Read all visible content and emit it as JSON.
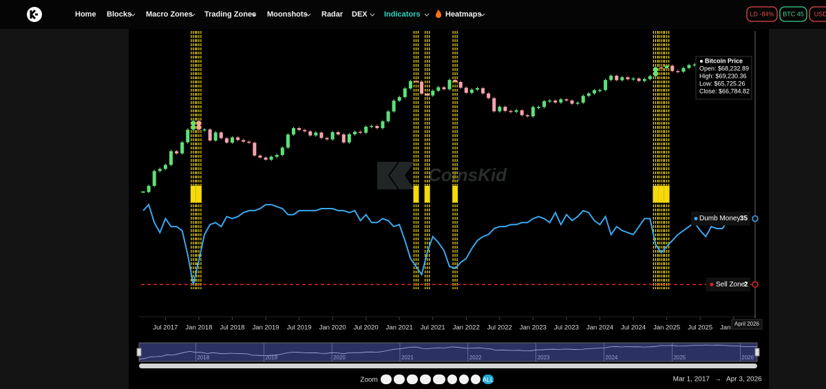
{
  "nav": {
    "items": [
      {
        "label": "Home"
      },
      {
        "label": "Blocks"
      },
      {
        "label": "Macro Zones"
      },
      {
        "label": "Trading Zones"
      },
      {
        "label": "Moonshots"
      },
      {
        "label": "Radar"
      },
      {
        "label": "DEX"
      },
      {
        "label": "Indicators",
        "active": true
      },
      {
        "label": "Heatmaps"
      }
    ],
    "badges": [
      {
        "label": "LD -84%",
        "color": "#e5484d"
      },
      {
        "label": "BTC 45",
        "color": "#3fcf8e"
      },
      {
        "label": "USDT",
        "color": "#e5484d"
      }
    ]
  },
  "watermark": "CoinsKid",
  "chart_data": {
    "type": "candlestick-line",
    "x": [
      "Mar 2017",
      "Apr 2017",
      "May 2017",
      "Jun 2017",
      "Jul 2017",
      "Aug 2017",
      "Sep 2017",
      "Oct 2017",
      "Nov 2017",
      "Dec 2017",
      "Jan 2018",
      "Feb 2018",
      "Mar 2018",
      "Apr 2018",
      "May 2018",
      "Jun 2018",
      "Jul 2018",
      "Aug 2018",
      "Sep 2018",
      "Oct 2018",
      "Nov 2018",
      "Dec 2018",
      "Jan 2019",
      "Feb 2019",
      "Mar 2019",
      "Apr 2019",
      "May 2019",
      "Jun 2019",
      "Jul 2019",
      "Aug 2019",
      "Sep 2019",
      "Oct 2019",
      "Nov 2019",
      "Dec 2019",
      "Jan 2020",
      "Feb 2020",
      "Mar 2020",
      "Apr 2020",
      "May 2020",
      "Jun 2020",
      "Jul 2020",
      "Aug 2020",
      "Sep 2020",
      "Oct 2020",
      "Nov 2020",
      "Dec 2020",
      "Jan 2021",
      "Feb 2021",
      "Mar 2021",
      "Apr 2021",
      "May 2021",
      "Jun 2021",
      "Jul 2021",
      "Aug 2021",
      "Sep 2021",
      "Oct 2021",
      "Nov 2021",
      "Dec 2021",
      "Jan 2022",
      "Feb 2022",
      "Mar 2022",
      "Apr 2022",
      "May 2022",
      "Jun 2022",
      "Jul 2022",
      "Aug 2022",
      "Sep 2022",
      "Oct 2022",
      "Nov 2022",
      "Dec 2022",
      "Jan 2023",
      "Feb 2023",
      "Mar 2023",
      "Apr 2023",
      "May 2023",
      "Jun 2023",
      "Jul 2023",
      "Aug 2023",
      "Sep 2023",
      "Oct 2023",
      "Nov 2023",
      "Dec 2023",
      "Jan 2024",
      "Feb 2024",
      "Mar 2024",
      "Apr 2024",
      "May 2024",
      "Jun 2024",
      "Jul 2024",
      "Aug 2024",
      "Sep 2024",
      "Oct 2024",
      "Nov 2024",
      "Dec 2024",
      "Jan 2025",
      "Feb 2025",
      "Mar 2025",
      "Apr 2025",
      "May 2025",
      "Jun 2025",
      "Jul 2025",
      "Aug 2025",
      "Sep 2025",
      "Oct 2025",
      "Nov 2025",
      "Dec 2025",
      "Jan 2026",
      "Feb 2026",
      "Mar 2026",
      "Apr 2026"
    ],
    "series": [
      {
        "name": "Bitcoin Price",
        "up_color": "#5ee07a",
        "down_color": "#f4a3ad",
        "log_scale": true,
        "values": [
          1080,
          1350,
          2300,
          2480,
          2870,
          4700,
          4340,
          6470,
          10200,
          14000,
          10200,
          10300,
          6900,
          9250,
          7500,
          6400,
          7730,
          7030,
          6630,
          6370,
          4020,
          3740,
          3460,
          3850,
          4100,
          5350,
          8570,
          10800,
          10100,
          9630,
          8290,
          9200,
          7570,
          7190,
          9350,
          8600,
          6440,
          8660,
          9460,
          9140,
          11350,
          11680,
          10780,
          13800,
          19700,
          29000,
          33100,
          45100,
          58900,
          57700,
          37300,
          35000,
          41500,
          47100,
          43800,
          61300,
          57000,
          46300,
          38500,
          43200,
          45500,
          37700,
          31800,
          19800,
          23300,
          20000,
          19400,
          20500,
          17200,
          16500,
          23100,
          23100,
          28500,
          29200,
          27200,
          30500,
          29200,
          26000,
          27000,
          34500,
          37700,
          42300,
          42600,
          61200,
          71300,
          60600,
          67500,
          62700,
          64600,
          59000,
          63300,
          70200,
          96400,
          93400,
          102400,
          84400,
          82500,
          94200,
          104600,
          107100,
          115800,
          108200,
          114000,
          109600,
          90400,
          87500,
          78000,
          67000,
          68200,
          66784.82
        ]
      },
      {
        "name": "Dumb Money:",
        "color": "#3aa8f0",
        "axis": "y2",
        "values": [
          39,
          42,
          33,
          28,
          35,
          31,
          31,
          29,
          17,
          2,
          14,
          27,
          32,
          33,
          31,
          36,
          35,
          36,
          38,
          39,
          39,
          40,
          42,
          42,
          41,
          40,
          37,
          37,
          39,
          39,
          39,
          39,
          40,
          40,
          40,
          39,
          39,
          38,
          39,
          34,
          37,
          33,
          33,
          35,
          34,
          31,
          32,
          24,
          15,
          11,
          7,
          18,
          26,
          23,
          19,
          11,
          10,
          13,
          15,
          20,
          24,
          26,
          27,
          30,
          31,
          31,
          32,
          32,
          33,
          33,
          35,
          36,
          35,
          33,
          38,
          32,
          37,
          34,
          36,
          39,
          38,
          34,
          32,
          36,
          27,
          31,
          29,
          28,
          27,
          31,
          35,
          35,
          22,
          18,
          21,
          24,
          27,
          29,
          31,
          33,
          29,
          26,
          31,
          30,
          30,
          34,
          36,
          35,
          35,
          35
        ]
      }
    ],
    "sell_zone": {
      "name": "Sell Zone:",
      "value": 2,
      "color": "#e02424"
    },
    "signals": [
      "Dec 2017",
      "Jan 2018",
      "Apr 2021",
      "Jun 2021",
      "Nov 2021",
      "Nov 2024",
      "Dec 2024",
      "Jan 2025"
    ],
    "signal_color": "#f5d90a",
    "ylim": [
      1000,
      150000
    ],
    "y2lim": [
      0,
      50
    ],
    "xticks": [
      "Jul 2017",
      "Jan 2018",
      "Jul 2018",
      "Jan 2019",
      "Jul 2019",
      "Jan 2020",
      "Jul 2020",
      "Jan 2021",
      "Jul 2021",
      "Jan 2022",
      "Jul 2022",
      "Jan 2023",
      "Jul 2023",
      "Jan 2024",
      "Jul 2024",
      "Jan 2025",
      "Jul 2025",
      "Jan 2026"
    ],
    "crosshair_label": "April 2026",
    "tooltip": {
      "title": "Bitcoin Price",
      "lines": [
        "Open: $68,232.89",
        "High: $69,230.36",
        "Low: $65,725.26",
        "Close: $66,784.82"
      ]
    },
    "navigator_labels": [
      "2018",
      "2019",
      "2020",
      "2021",
      "2022",
      "2023",
      "2024",
      "2025",
      "2026"
    ]
  },
  "footer": {
    "zoom_label": "Zoom",
    "all_button": "ALL",
    "range_start": "Mar 1, 2017",
    "range_separator": "→",
    "range_end": "Apr 3, 2026"
  }
}
